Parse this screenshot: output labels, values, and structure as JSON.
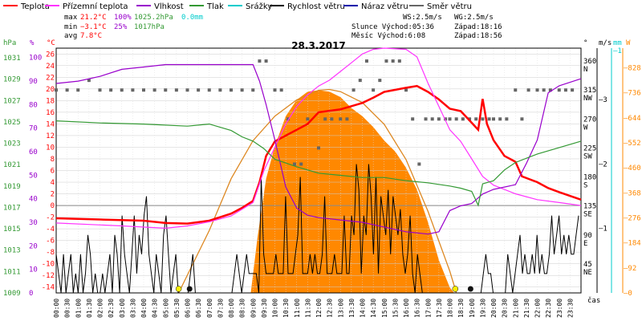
{
  "legend": {
    "items": [
      {
        "label": "Teplota",
        "color": "#ff0000"
      },
      {
        "label": "Přízemní teplota",
        "color": "#ff33ff"
      },
      {
        "label": "Vlhkost",
        "color": "#9900cc"
      },
      {
        "label": "Tlak",
        "color": "#339933"
      },
      {
        "label": "Srážky",
        "color": "#00cccc"
      },
      {
        "label": "Rychlost větru",
        "color": "#000000"
      },
      {
        "label": "Náraz větru",
        "color": "#0000aa"
      },
      {
        "label": "Směr větru",
        "color": "#666666"
      }
    ]
  },
  "stats": {
    "max_label": "max",
    "max_temp": "21.2°C",
    "max_hum": "100%",
    "max_press": "1025.2hPa",
    "rain": "0.0mm",
    "min_label": "min",
    "min_temp": "−3.1°C",
    "min_hum": "25%",
    "min_press": "1017hPa",
    "avg_label": "avg",
    "avg_temp": "7.8°C",
    "ws": "WS:2.5m/s",
    "wg": "WG:2.5m/s",
    "sun": "Slunce Východ:05:36",
    "sun_set": "Západ:18:16",
    "moon": "Měsíc  Východ:6:08",
    "moon_set": "Západ:18:56"
  },
  "axes": {
    "hpa_unit": "hPa",
    "pct_unit": "%",
    "c_unit": "°C",
    "deg_unit": "°",
    "ms_unit": "m/s",
    "mm_unit": "mm",
    "w_unit": "W",
    "hpa_ticks": [
      "1031",
      "1029",
      "1027",
      "1025",
      "1023",
      "1021",
      "1019",
      "1017",
      "1015",
      "1013",
      "1011",
      "1009"
    ],
    "pct_ticks": [
      "100",
      "90",
      "80",
      "70",
      "60",
      "50",
      "40",
      "30",
      "20",
      "10",
      "0"
    ],
    "c_ticks": [
      "26",
      "24",
      "22",
      "20",
      "18",
      "16",
      "14",
      "12",
      "10",
      "8",
      "6",
      "4",
      "2",
      "0",
      "-2",
      "-4",
      "-6",
      "-8",
      "-10",
      "-12",
      "-14"
    ],
    "dir_ticks": [
      "360\nN",
      "315\nNW",
      "270\nW",
      "225\nSW",
      "180\nS",
      "135\nSE",
      "90\nE",
      "45\nNE"
    ],
    "ms_ticks": [
      "3",
      "2",
      "1"
    ],
    "mm_ticks": [
      "1"
    ],
    "w_ticks": [
      "828",
      "736",
      "644",
      "552",
      "460",
      "368",
      "276",
      "184",
      "92",
      "0"
    ],
    "x_title": "čas",
    "x_ticks": [
      "00:00",
      "00:30",
      "01:00",
      "01:30",
      "02:00",
      "02:30",
      "03:00",
      "03:30",
      "04:00",
      "04:30",
      "05:00",
      "05:30",
      "06:00",
      "06:30",
      "07:00",
      "07:30",
      "08:00",
      "08:30",
      "09:00",
      "09:30",
      "10:00",
      "10:30",
      "11:00",
      "11:30",
      "12:00",
      "12:30",
      "13:00",
      "13:30",
      "14:00",
      "14:30",
      "15:00",
      "15:30",
      "16:00",
      "16:30",
      "17:00",
      "17:30",
      "18:00",
      "18:30",
      "19:00",
      "19:30",
      "20:00",
      "20:30",
      "21:00",
      "21:30",
      "22:00",
      "22:30",
      "23:00",
      "23:30"
    ]
  },
  "chart_data": {
    "type": "line",
    "title": "28.3.2017",
    "x_unit": "hours",
    "series": [
      {
        "name": "Teplota",
        "color": "#ff0000",
        "axis": "temp",
        "points": [
          [
            0,
            -2.2
          ],
          [
            2,
            -2.4
          ],
          [
            4,
            -2.6
          ],
          [
            5,
            -3.0
          ],
          [
            6,
            -3.1
          ],
          [
            7,
            -2.6
          ],
          [
            8,
            -1.4
          ],
          [
            8.5,
            -0.4
          ],
          [
            9,
            0.8
          ],
          [
            9.3,
            4
          ],
          [
            9.6,
            8.5
          ],
          [
            10,
            11
          ],
          [
            11,
            13
          ],
          [
            11.5,
            14
          ],
          [
            12,
            16
          ],
          [
            13,
            16.5
          ],
          [
            14,
            17.6
          ],
          [
            14.5,
            18.5
          ],
          [
            15,
            19.5
          ],
          [
            16,
            20.2
          ],
          [
            16.5,
            20.5
          ],
          [
            17,
            19.5
          ],
          [
            17.5,
            18.2
          ],
          [
            18,
            16.6
          ],
          [
            18.5,
            16.2
          ],
          [
            19,
            14.2
          ],
          [
            19.3,
            13
          ],
          [
            19.5,
            18.3
          ],
          [
            19.7,
            14
          ],
          [
            20,
            11.2
          ],
          [
            20.5,
            8.5
          ],
          [
            21,
            7.5
          ],
          [
            21.3,
            5
          ],
          [
            22,
            4
          ],
          [
            22.5,
            3
          ],
          [
            23,
            2.3
          ],
          [
            24,
            1
          ]
        ]
      },
      {
        "name": "Přízemní teplota",
        "color": "#ff33ff",
        "axis": "temp",
        "points": [
          [
            0,
            -3
          ],
          [
            3,
            -3.5
          ],
          [
            5,
            -3.9
          ],
          [
            6,
            -3.5
          ],
          [
            7,
            -2.8
          ],
          [
            8,
            -1.8
          ],
          [
            9,
            0.5
          ],
          [
            9.5,
            6
          ],
          [
            10,
            10
          ],
          [
            10.5,
            14
          ],
          [
            11,
            17
          ],
          [
            11.5,
            19
          ],
          [
            12,
            20.5
          ],
          [
            12.5,
            21.5
          ],
          [
            13,
            23
          ],
          [
            13.5,
            24.5
          ],
          [
            14,
            26
          ],
          [
            14.5,
            26.8
          ],
          [
            15,
            27
          ],
          [
            16,
            26.8
          ],
          [
            16.5,
            25.5
          ],
          [
            17,
            21
          ],
          [
            17.5,
            17
          ],
          [
            18,
            13
          ],
          [
            18.5,
            11
          ],
          [
            19,
            8
          ],
          [
            19.5,
            5
          ],
          [
            20,
            3.5
          ],
          [
            21,
            2
          ],
          [
            22,
            1
          ],
          [
            23,
            0.5
          ],
          [
            24,
            0
          ]
        ]
      },
      {
        "name": "Vlhkost",
        "color": "#9900cc",
        "axis": "pct",
        "points": [
          [
            0,
            89
          ],
          [
            1,
            90
          ],
          [
            2,
            92
          ],
          [
            3,
            95
          ],
          [
            4,
            96
          ],
          [
            5,
            97
          ],
          [
            6,
            97
          ],
          [
            7,
            97
          ],
          [
            8,
            97
          ],
          [
            9,
            97
          ],
          [
            9.3,
            90
          ],
          [
            9.6,
            80
          ],
          [
            10,
            65
          ],
          [
            10.5,
            45
          ],
          [
            11,
            36
          ],
          [
            11.5,
            33
          ],
          [
            12,
            32
          ],
          [
            13,
            31
          ],
          [
            14,
            30
          ],
          [
            15,
            28
          ],
          [
            16,
            26
          ],
          [
            17,
            25
          ],
          [
            17.5,
            26
          ],
          [
            18,
            35
          ],
          [
            18.5,
            37
          ],
          [
            19,
            38
          ],
          [
            19.5,
            42
          ],
          [
            20,
            44
          ],
          [
            21,
            46
          ],
          [
            21.5,
            55
          ],
          [
            22,
            65
          ],
          [
            22.5,
            85
          ],
          [
            23,
            88
          ],
          [
            24,
            91
          ]
        ]
      },
      {
        "name": "Tlak",
        "color": "#339933",
        "axis": "hpa",
        "points": [
          [
            0,
            1025.1
          ],
          [
            2,
            1024.9
          ],
          [
            4,
            1024.8
          ],
          [
            6,
            1024.6
          ],
          [
            7,
            1024.8
          ],
          [
            8,
            1024.2
          ],
          [
            8.5,
            1023.6
          ],
          [
            9,
            1023.2
          ],
          [
            9.5,
            1022.5
          ],
          [
            10,
            1021.5
          ],
          [
            11,
            1020.8
          ],
          [
            12,
            1020.2
          ],
          [
            13,
            1020.0
          ],
          [
            14,
            1019.8
          ],
          [
            15,
            1019.8
          ],
          [
            16,
            1019.5
          ],
          [
            17,
            1019.3
          ],
          [
            18,
            1019.0
          ],
          [
            18.5,
            1018.8
          ],
          [
            19,
            1018.5
          ],
          [
            19.3,
            1017.2
          ],
          [
            19.5,
            1019.2
          ],
          [
            20,
            1019.5
          ],
          [
            20.5,
            1020.5
          ],
          [
            21,
            1021.2
          ],
          [
            22,
            1022.0
          ],
          [
            23,
            1022.6
          ],
          [
            24,
            1023.2
          ]
        ]
      }
    ],
    "solar": {
      "name": "Solar",
      "color": "#ff8800",
      "axis": "w",
      "points": [
        [
          8.9,
          0
        ],
        [
          9.2,
          200
        ],
        [
          9.6,
          420
        ],
        [
          10,
          540
        ],
        [
          10.5,
          650
        ],
        [
          11,
          710
        ],
        [
          11.5,
          740
        ],
        [
          12,
          745
        ],
        [
          12.5,
          740
        ],
        [
          13,
          720
        ],
        [
          13.5,
          680
        ],
        [
          14,
          650
        ],
        [
          14.5,
          610
        ],
        [
          15,
          560
        ],
        [
          15.5,
          520
        ],
        [
          16,
          460
        ],
        [
          16.5,
          380
        ],
        [
          17,
          260
        ],
        [
          17.5,
          120
        ],
        [
          18,
          20
        ],
        [
          18.2,
          0
        ]
      ]
    },
    "solar_theoretical": {
      "color": "#dd8822",
      "points": [
        [
          5.6,
          0
        ],
        [
          7,
          230
        ],
        [
          8,
          420
        ],
        [
          9,
          560
        ],
        [
          10,
          650
        ],
        [
          11,
          710
        ],
        [
          12,
          745
        ],
        [
          12.5,
          748
        ],
        [
          13,
          740
        ],
        [
          14,
          700
        ],
        [
          15,
          620
        ],
        [
          16,
          490
        ],
        [
          17,
          300
        ],
        [
          18,
          80
        ],
        [
          18.3,
          0
        ]
      ]
    },
    "wind": {
      "name": "Rychlost větru",
      "color": "#000000",
      "axis": "ms",
      "values": [
        0.6,
        0.3,
        0,
        0.6,
        0,
        0.3,
        0.6,
        0,
        0.3,
        0,
        0.6,
        0,
        0.3,
        0.9,
        0.6,
        0,
        0.3,
        0,
        0,
        0.3,
        0,
        0.3,
        0.6,
        0,
        0.9,
        0.6,
        0,
        1.2,
        0.6,
        0.3,
        0,
        0.6,
        1.2,
        0.3,
        0.9,
        0.6,
        1.2,
        1.5,
        0.6,
        0.3,
        0,
        0.6,
        0.3,
        0,
        0.9,
        1.2,
        0.6,
        0,
        0.3,
        0.6,
        0,
        0,
        0,
        0,
        0,
        0.3,
        0.6,
        0,
        0,
        0,
        0,
        0,
        0,
        0,
        0,
        0,
        0,
        0,
        0,
        0,
        0,
        0,
        0,
        0.3,
        0.6,
        0.3,
        0,
        0.3,
        0.6,
        0.3,
        0.3,
        0.3,
        0.3,
        0,
        1.8,
        0.6,
        0.3,
        0.3,
        0.3,
        0.3,
        0.6,
        0.3,
        0.3,
        0.3,
        1.5,
        0.3,
        0.3,
        0.3,
        0.6,
        0.9,
        1.8,
        0.3,
        0.3,
        0.3,
        0.6,
        0.3,
        0.6,
        0.3,
        0.3,
        0.6,
        1.5,
        0.3,
        0.3,
        0.3,
        0.6,
        0.3,
        0.3,
        0.3,
        1.2,
        0.3,
        0.3,
        1.2,
        0.9,
        2.0,
        1.6,
        0.3,
        1.2,
        0.9,
        2.0,
        1.5,
        0.6,
        1.8,
        0.3,
        1.5,
        1.2,
        0.9,
        1.6,
        0.6,
        1.5,
        1.2,
        0.9,
        1.3,
        0.6,
        0.3,
        0.6,
        1.2,
        0.3,
        0,
        0.6,
        0.3,
        0,
        0,
        0,
        0,
        0,
        0,
        0,
        0,
        0,
        0,
        0,
        0,
        0,
        0,
        0,
        0,
        0,
        0,
        0,
        0,
        0,
        0,
        0,
        0,
        0,
        0.3,
        0.6,
        0.3,
        0.3,
        0,
        0,
        0,
        0,
        0,
        0,
        0.6,
        0.3,
        0,
        0.3,
        0.6,
        0.9,
        0.3,
        0.6,
        0.3,
        0.3,
        0.6,
        0.3,
        0.9,
        0.3,
        0.6,
        0.3,
        0.3,
        0.6,
        1.2,
        0.6,
        0.9,
        1.2,
        0.6,
        0.9,
        0.6,
        0.9,
        0.6,
        0.6,
        0.9,
        1.2
      ]
    },
    "wind_dir": {
      "name": "Směr větru",
      "color": "#666666",
      "axis": "deg",
      "points": [
        [
          0,
          315
        ],
        [
          0.5,
          315
        ],
        [
          1,
          315
        ],
        [
          1.5,
          330
        ],
        [
          2,
          315
        ],
        [
          2.5,
          315
        ],
        [
          3,
          315
        ],
        [
          3.5,
          315
        ],
        [
          4,
          315
        ],
        [
          4.5,
          315
        ],
        [
          5,
          315
        ],
        [
          5.5,
          315
        ],
        [
          6,
          315
        ],
        [
          6.5,
          315
        ],
        [
          7,
          315
        ],
        [
          7.5,
          315
        ],
        [
          8,
          315
        ],
        [
          8.5,
          315
        ],
        [
          9,
          315
        ],
        [
          9.3,
          360
        ],
        [
          9.6,
          360
        ],
        [
          10,
          315
        ],
        [
          10.3,
          315
        ],
        [
          10.6,
          270
        ],
        [
          10.9,
          200
        ],
        [
          11.2,
          200
        ],
        [
          11.5,
          270
        ],
        [
          12,
          225
        ],
        [
          12.3,
          270
        ],
        [
          12.6,
          270
        ],
        [
          13,
          270
        ],
        [
          13.3,
          270
        ],
        [
          13.6,
          315
        ],
        [
          13.9,
          330
        ],
        [
          14.2,
          360
        ],
        [
          14.5,
          315
        ],
        [
          14.8,
          330
        ],
        [
          15.1,
          360
        ],
        [
          15.4,
          360
        ],
        [
          15.7,
          360
        ],
        [
          16,
          315
        ],
        [
          16.3,
          270
        ],
        [
          16.6,
          200
        ],
        [
          16.9,
          270
        ],
        [
          17.2,
          270
        ],
        [
          17.5,
          270
        ],
        [
          17.8,
          270
        ],
        [
          18,
          270
        ],
        [
          18.3,
          270
        ],
        [
          18.6,
          270
        ],
        [
          18.9,
          270
        ],
        [
          19.2,
          270
        ],
        [
          19.5,
          270
        ],
        [
          19.8,
          270
        ],
        [
          20,
          270
        ],
        [
          20.3,
          270
        ],
        [
          20.6,
          270
        ],
        [
          21,
          315
        ],
        [
          21.3,
          270
        ],
        [
          21.6,
          315
        ],
        [
          22,
          315
        ],
        [
          22.3,
          315
        ],
        [
          22.6,
          315
        ],
        [
          23,
          315
        ],
        [
          23.3,
          315
        ],
        [
          23.6,
          315
        ]
      ]
    },
    "sun_markers": [
      {
        "x": 5.6,
        "color": "#ffee00"
      },
      {
        "x": 18.25,
        "color": "#ffee00"
      }
    ],
    "moon_markers": [
      {
        "x": 6.1,
        "color": "#111111"
      },
      {
        "x": 18.95,
        "color": "#111111"
      }
    ]
  }
}
